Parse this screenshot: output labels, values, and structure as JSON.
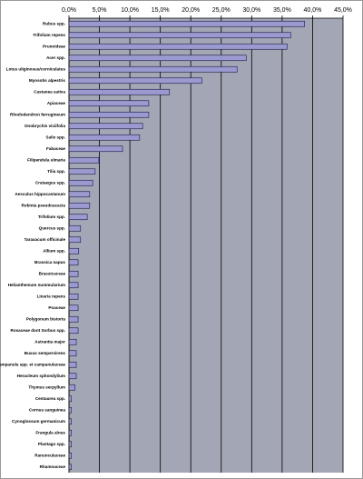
{
  "chart_data": {
    "type": "bar",
    "orientation": "horizontal",
    "categories": [
      "Rubus spp.",
      "Trifolium repens",
      "Prunoideae",
      "Acer spp.",
      "Lotus uliginosus/corniculatus",
      "Myosotis alpestris",
      "Castanea sativa",
      "Apiaceae",
      "Rhododendron ferrugineum",
      "Onobrychis viciifolia",
      "Salix spp.",
      "Fabaceae",
      "Filipendula ulmaria",
      "Tilia spp.",
      "Crataegus spp.",
      "Aesculus hippocastanum",
      "Robinia pseudoacacia",
      "Trifolium spp.",
      "Quercus spp.",
      "Taraxacum officinale",
      "Allium spp.",
      "Brassica napus",
      "Brassicaceae",
      "Helianthemum nummularium",
      "Linaria repens",
      "Poaceae",
      "Polygonum bistorta",
      "Rosaceae dont Sorbus spp.",
      "Astrantia major",
      "Buxus sempervirens",
      "Campanula spp. et campanulaceae",
      "Heracleum sphondylium",
      "Thymus serpyllum",
      "Centaurea spp.",
      "Cornus sanguinea",
      "Cynoglossum germanicum",
      "Frangula alnus",
      "Plantago spp.",
      "Ranunculaceae",
      "Rhamnaceae"
    ],
    "values": [
      38.7,
      36.4,
      35.8,
      29.1,
      27.6,
      21.8,
      16.5,
      13.1,
      13.1,
      12.1,
      11.6,
      8.8,
      4.9,
      4.3,
      3.9,
      3.4,
      3.4,
      3.0,
      1.9,
      1.9,
      1.6,
      1.5,
      1.5,
      1.5,
      1.5,
      1.5,
      1.5,
      1.5,
      1.2,
      1.2,
      1.2,
      1.2,
      1.0,
      0.4,
      0.4,
      0.4,
      0.4,
      0.4,
      0.4,
      0.4
    ],
    "color": "#9a9ad0",
    "xlim": [
      0,
      45
    ],
    "xticks": [
      {
        "value": 0,
        "label": "0,0%"
      },
      {
        "value": 5,
        "label": "5,0%"
      },
      {
        "value": 10,
        "label": "10,0%"
      },
      {
        "value": 15,
        "label": "15,0%"
      },
      {
        "value": 20,
        "label": "20,0%"
      },
      {
        "value": 25,
        "label": "25,0%"
      },
      {
        "value": 30,
        "label": "30,0%"
      },
      {
        "value": 35,
        "label": "35,0%"
      },
      {
        "value": 40,
        "label": "40,0%"
      },
      {
        "value": 45,
        "label": "45,0%"
      }
    ],
    "grid": true
  }
}
